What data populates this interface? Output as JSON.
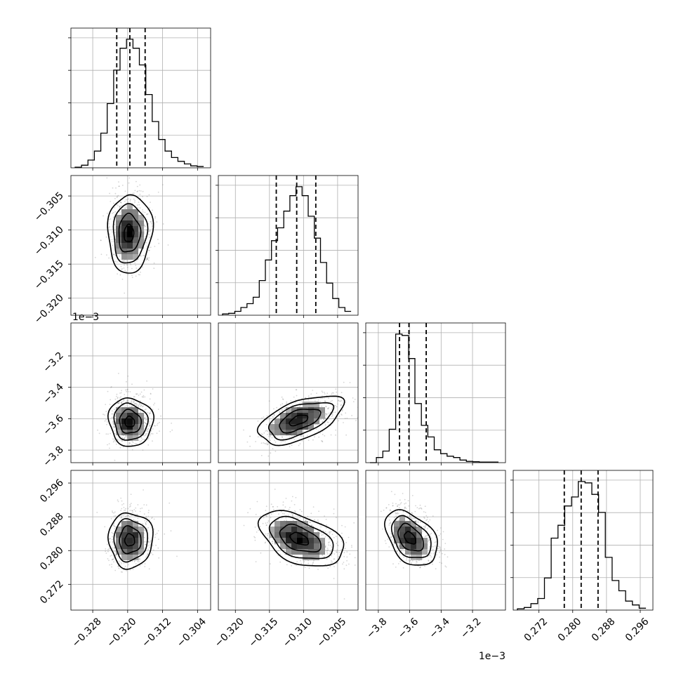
{
  "chart_data": {
    "type": "corner",
    "grid": true,
    "parameters": [
      {
        "ticks": [
          -0.328,
          -0.32,
          -0.312,
          -0.304
        ],
        "tick_labels": [
          "−0.328",
          "−0.320",
          "−0.312",
          "−0.304"
        ],
        "range": [
          -0.333,
          -0.301
        ],
        "offset_text": "",
        "quantiles": [
          -0.3225,
          -0.3195,
          -0.316
        ],
        "hist": [
          0.005,
          0.02,
          0.06,
          0.13,
          0.27,
          0.5,
          0.76,
          0.93,
          1.0,
          0.93,
          0.8,
          0.57,
          0.36,
          0.22,
          0.13,
          0.08,
          0.05,
          0.03,
          0.015,
          0.01
        ]
      },
      {
        "ticks": [
          -0.32,
          -0.315,
          -0.31,
          -0.305
        ],
        "tick_labels": [
          "−0.320",
          "−0.315",
          "−0.310",
          "−0.305"
        ],
        "range": [
          -0.3225,
          -0.302
        ],
        "offset_text": "",
        "quantiles": [
          -0.314,
          -0.311,
          -0.3082
        ],
        "hist": [
          0.01,
          0.015,
          0.03,
          0.06,
          0.09,
          0.14,
          0.27,
          0.43,
          0.58,
          0.68,
          0.81,
          0.93,
          1.0,
          0.93,
          0.77,
          0.6,
          0.41,
          0.25,
          0.13,
          0.06,
          0.03
        ]
      },
      {
        "ticks": [
          -3.8,
          -3.6,
          -3.4,
          -3.2
        ],
        "tick_labels": [
          "−3.8",
          "−3.6",
          "−3.4",
          "−3.2"
        ],
        "range": [
          -3.88,
          -2.99
        ],
        "offset_text": "1e−3",
        "quantiles": [
          -3.665,
          -3.605,
          -3.495
        ],
        "hist": [
          0.0,
          0.04,
          0.09,
          0.26,
          1.0,
          0.99,
          0.81,
          0.46,
          0.29,
          0.2,
          0.1,
          0.07,
          0.05,
          0.04,
          0.02,
          0.01,
          0.007,
          0.005,
          0.005,
          0.005
        ]
      },
      {
        "ticks": [
          0.272,
          0.28,
          0.288,
          0.296
        ],
        "tick_labels": [
          "0.272",
          "0.280",
          "0.288",
          "0.296"
        ],
        "range": [
          0.2659,
          0.299
        ],
        "offset_text": "",
        "quantiles": [
          0.278,
          0.282,
          0.286
        ],
        "hist": [
          0.01,
          0.02,
          0.05,
          0.09,
          0.25,
          0.56,
          0.66,
          0.81,
          0.88,
          1.0,
          0.99,
          0.9,
          0.76,
          0.41,
          0.23,
          0.15,
          0.07,
          0.04,
          0.015
        ]
      }
    ],
    "pairs": [
      {
        "row": 1,
        "col": 0,
        "center": [
          -0.3198,
          -0.3105
        ],
        "sigma": [
          0.0023,
          0.0028
        ],
        "rho": 0.05
      },
      {
        "row": 2,
        "col": 0,
        "center": [
          -0.3196,
          -3.62
        ],
        "sigma": [
          0.0023,
          0.075
        ],
        "rho": -0.05
      },
      {
        "row": 2,
        "col": 1,
        "center": [
          -0.3108,
          -3.61
        ],
        "sigma": [
          0.0028,
          0.075
        ],
        "rho": 0.55
      },
      {
        "row": 3,
        "col": 0,
        "center": [
          -0.3196,
          0.2825
        ],
        "sigma": [
          0.0023,
          0.0032
        ],
        "rho": 0.0
      },
      {
        "row": 3,
        "col": 1,
        "center": [
          -0.3107,
          0.2828
        ],
        "sigma": [
          0.0028,
          0.0032
        ],
        "rho": -0.45
      },
      {
        "row": 3,
        "col": 2,
        "center": [
          -3.6,
          0.283
        ],
        "sigma": [
          0.075,
          0.0032
        ],
        "rho": -0.4
      }
    ]
  }
}
